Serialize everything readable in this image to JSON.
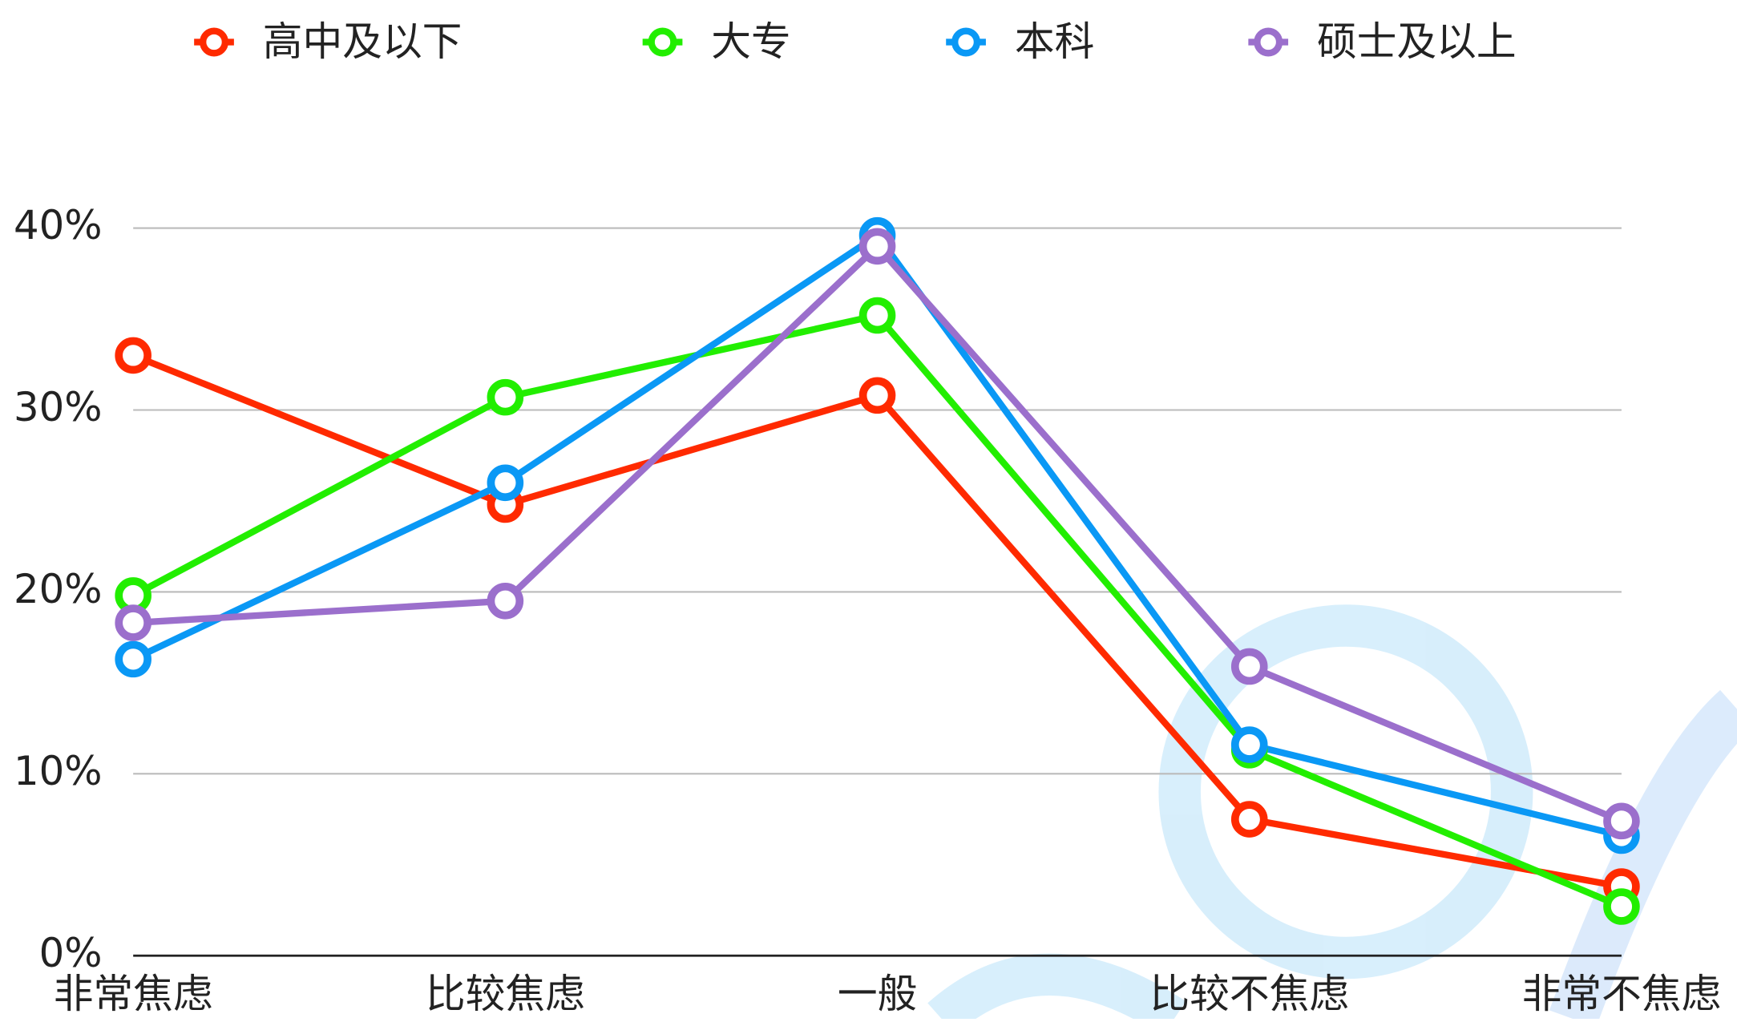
{
  "chart_data": {
    "type": "line",
    "categories": [
      "非常焦虑",
      "比较焦虑",
      "一般",
      "比较不焦虑",
      "非常不焦虑"
    ],
    "series": [
      {
        "name": "高中及以下",
        "color": "#ff2a00",
        "values": [
          33.0,
          24.8,
          30.8,
          7.5,
          3.8
        ]
      },
      {
        "name": "大专",
        "color": "#22ee00",
        "values": [
          19.8,
          30.7,
          35.2,
          11.3,
          2.7
        ]
      },
      {
        "name": "本科",
        "color": "#0a98f5",
        "values": [
          16.3,
          26.0,
          39.6,
          11.6,
          6.6
        ]
      },
      {
        "name": "硕士及以上",
        "color": "#9b6fcc",
        "values": [
          18.3,
          19.5,
          39.0,
          15.9,
          7.4
        ]
      }
    ],
    "ylim": [
      0,
      40
    ],
    "yticks": [
      {
        "value": 0,
        "label": "0%"
      },
      {
        "value": 10,
        "label": "10%"
      },
      {
        "value": 20,
        "label": "20%"
      },
      {
        "value": 30,
        "label": "30%"
      },
      {
        "value": 40,
        "label": "40%"
      }
    ],
    "grid": true,
    "legend": "top"
  }
}
